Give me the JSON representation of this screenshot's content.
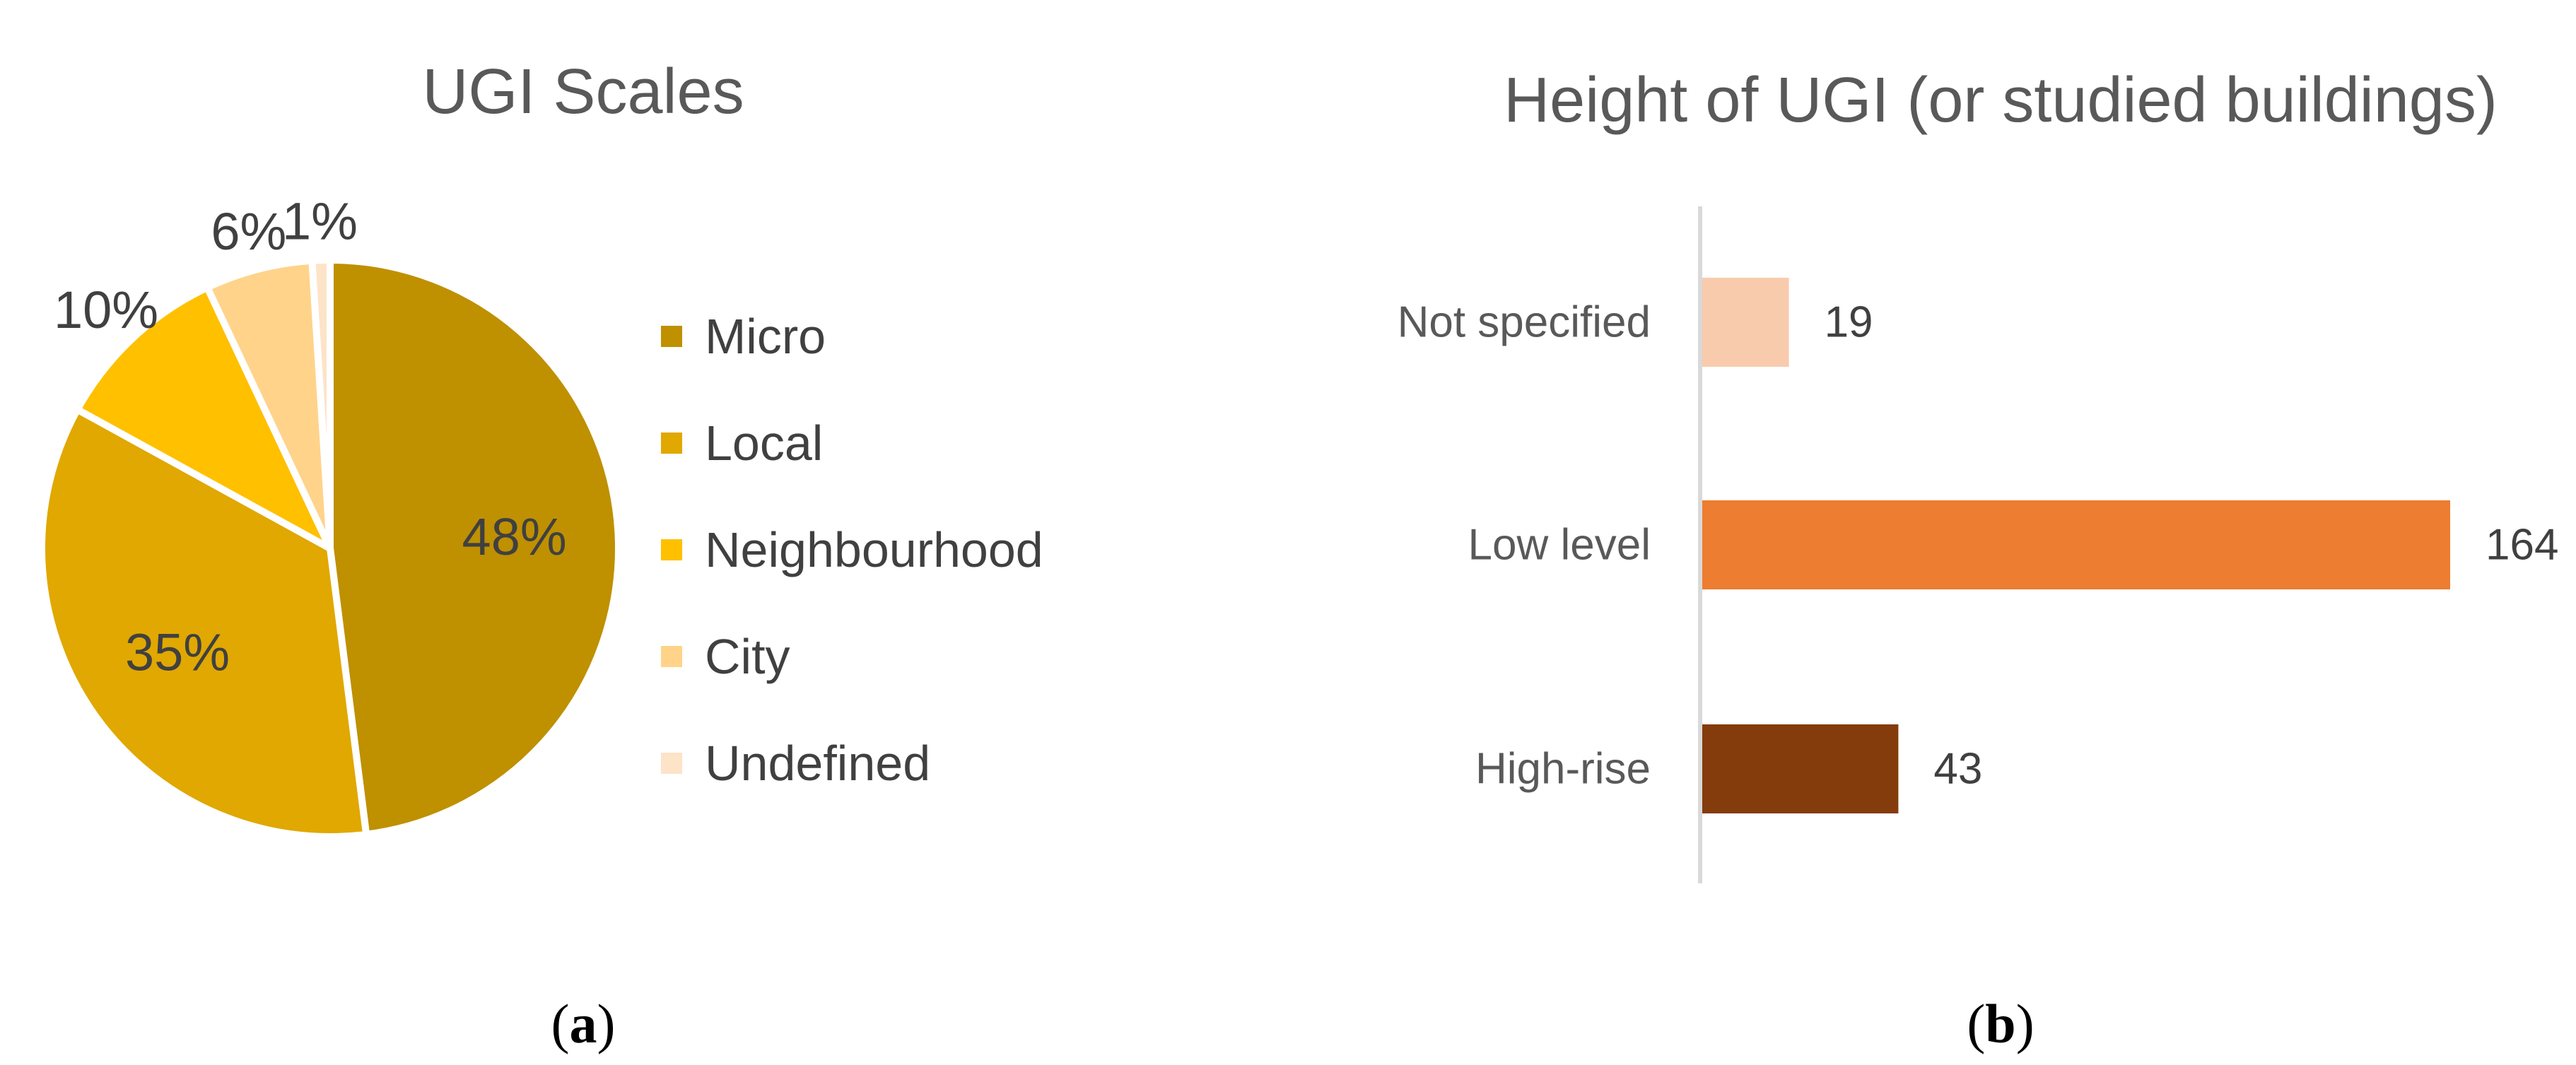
{
  "chart_data": [
    {
      "type": "pie",
      "title": "UGI Scales",
      "categories": [
        "Micro",
        "Local",
        "Neighbourhood",
        "City",
        "Undefined"
      ],
      "values": [
        48,
        35,
        10,
        6,
        1
      ],
      "labels": [
        "48%",
        "35%",
        "10%",
        "6%",
        "1%"
      ],
      "colors": [
        "#BF9000",
        "#E0A800",
        "#FFC000",
        "#FFD38A",
        "#FDE3C8"
      ],
      "legend": {
        "position": "right"
      },
      "panel_label": "a"
    },
    {
      "type": "bar",
      "orientation": "horizontal",
      "title": "Height of UGI (or studied buildings)",
      "categories": [
        "Not specified",
        "Low level",
        "High-rise"
      ],
      "values": [
        19,
        164,
        43
      ],
      "colors": [
        "#F8CBAD",
        "#ED7D31",
        "#843C0C"
      ],
      "xlim": [
        0,
        164
      ],
      "grid": false,
      "panel_label": "b"
    }
  ]
}
